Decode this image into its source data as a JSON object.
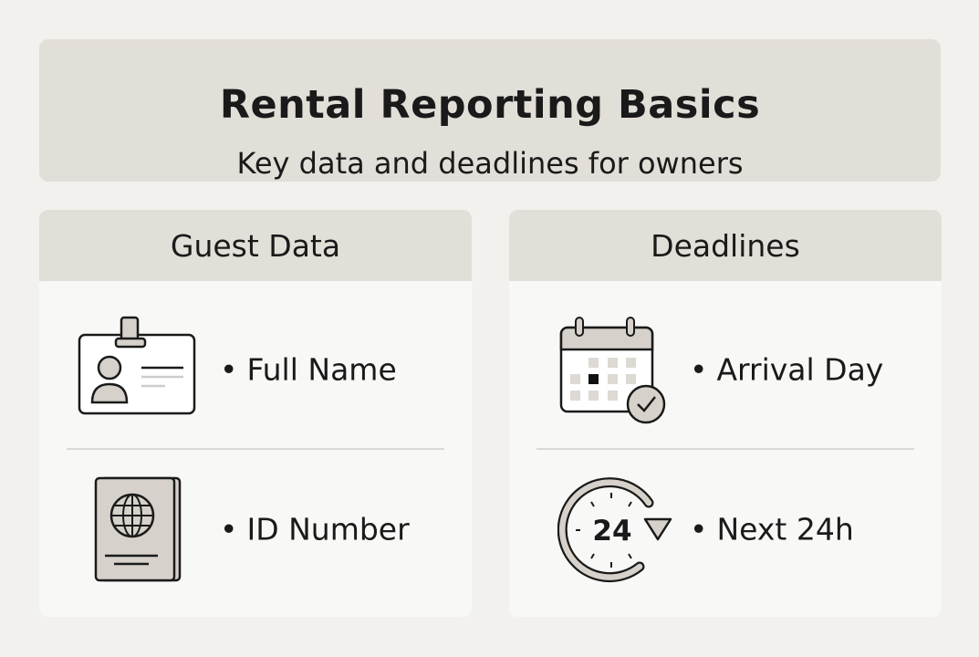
{
  "header": {
    "title": "Rental Reporting Basics",
    "subtitle": "Key data and deadlines for owners"
  },
  "cards": [
    {
      "title": "Guest Data",
      "items": [
        {
          "label": "Full Name",
          "icon": "id-badge-icon"
        },
        {
          "label": "ID Number",
          "icon": "passport-icon"
        }
      ]
    },
    {
      "title": "Deadlines",
      "items": [
        {
          "label": "Arrival Day",
          "icon": "calendar-check-icon"
        },
        {
          "label": "Next 24h",
          "icon": "clock-24h-icon",
          "icon_text": "24"
        }
      ]
    }
  ],
  "colors": {
    "background": "#f3f1ee",
    "panel": "#e2ded8",
    "card": "#f8f8f6",
    "icon_fill": "#d6d2cb",
    "ink": "#1a1a1a"
  }
}
